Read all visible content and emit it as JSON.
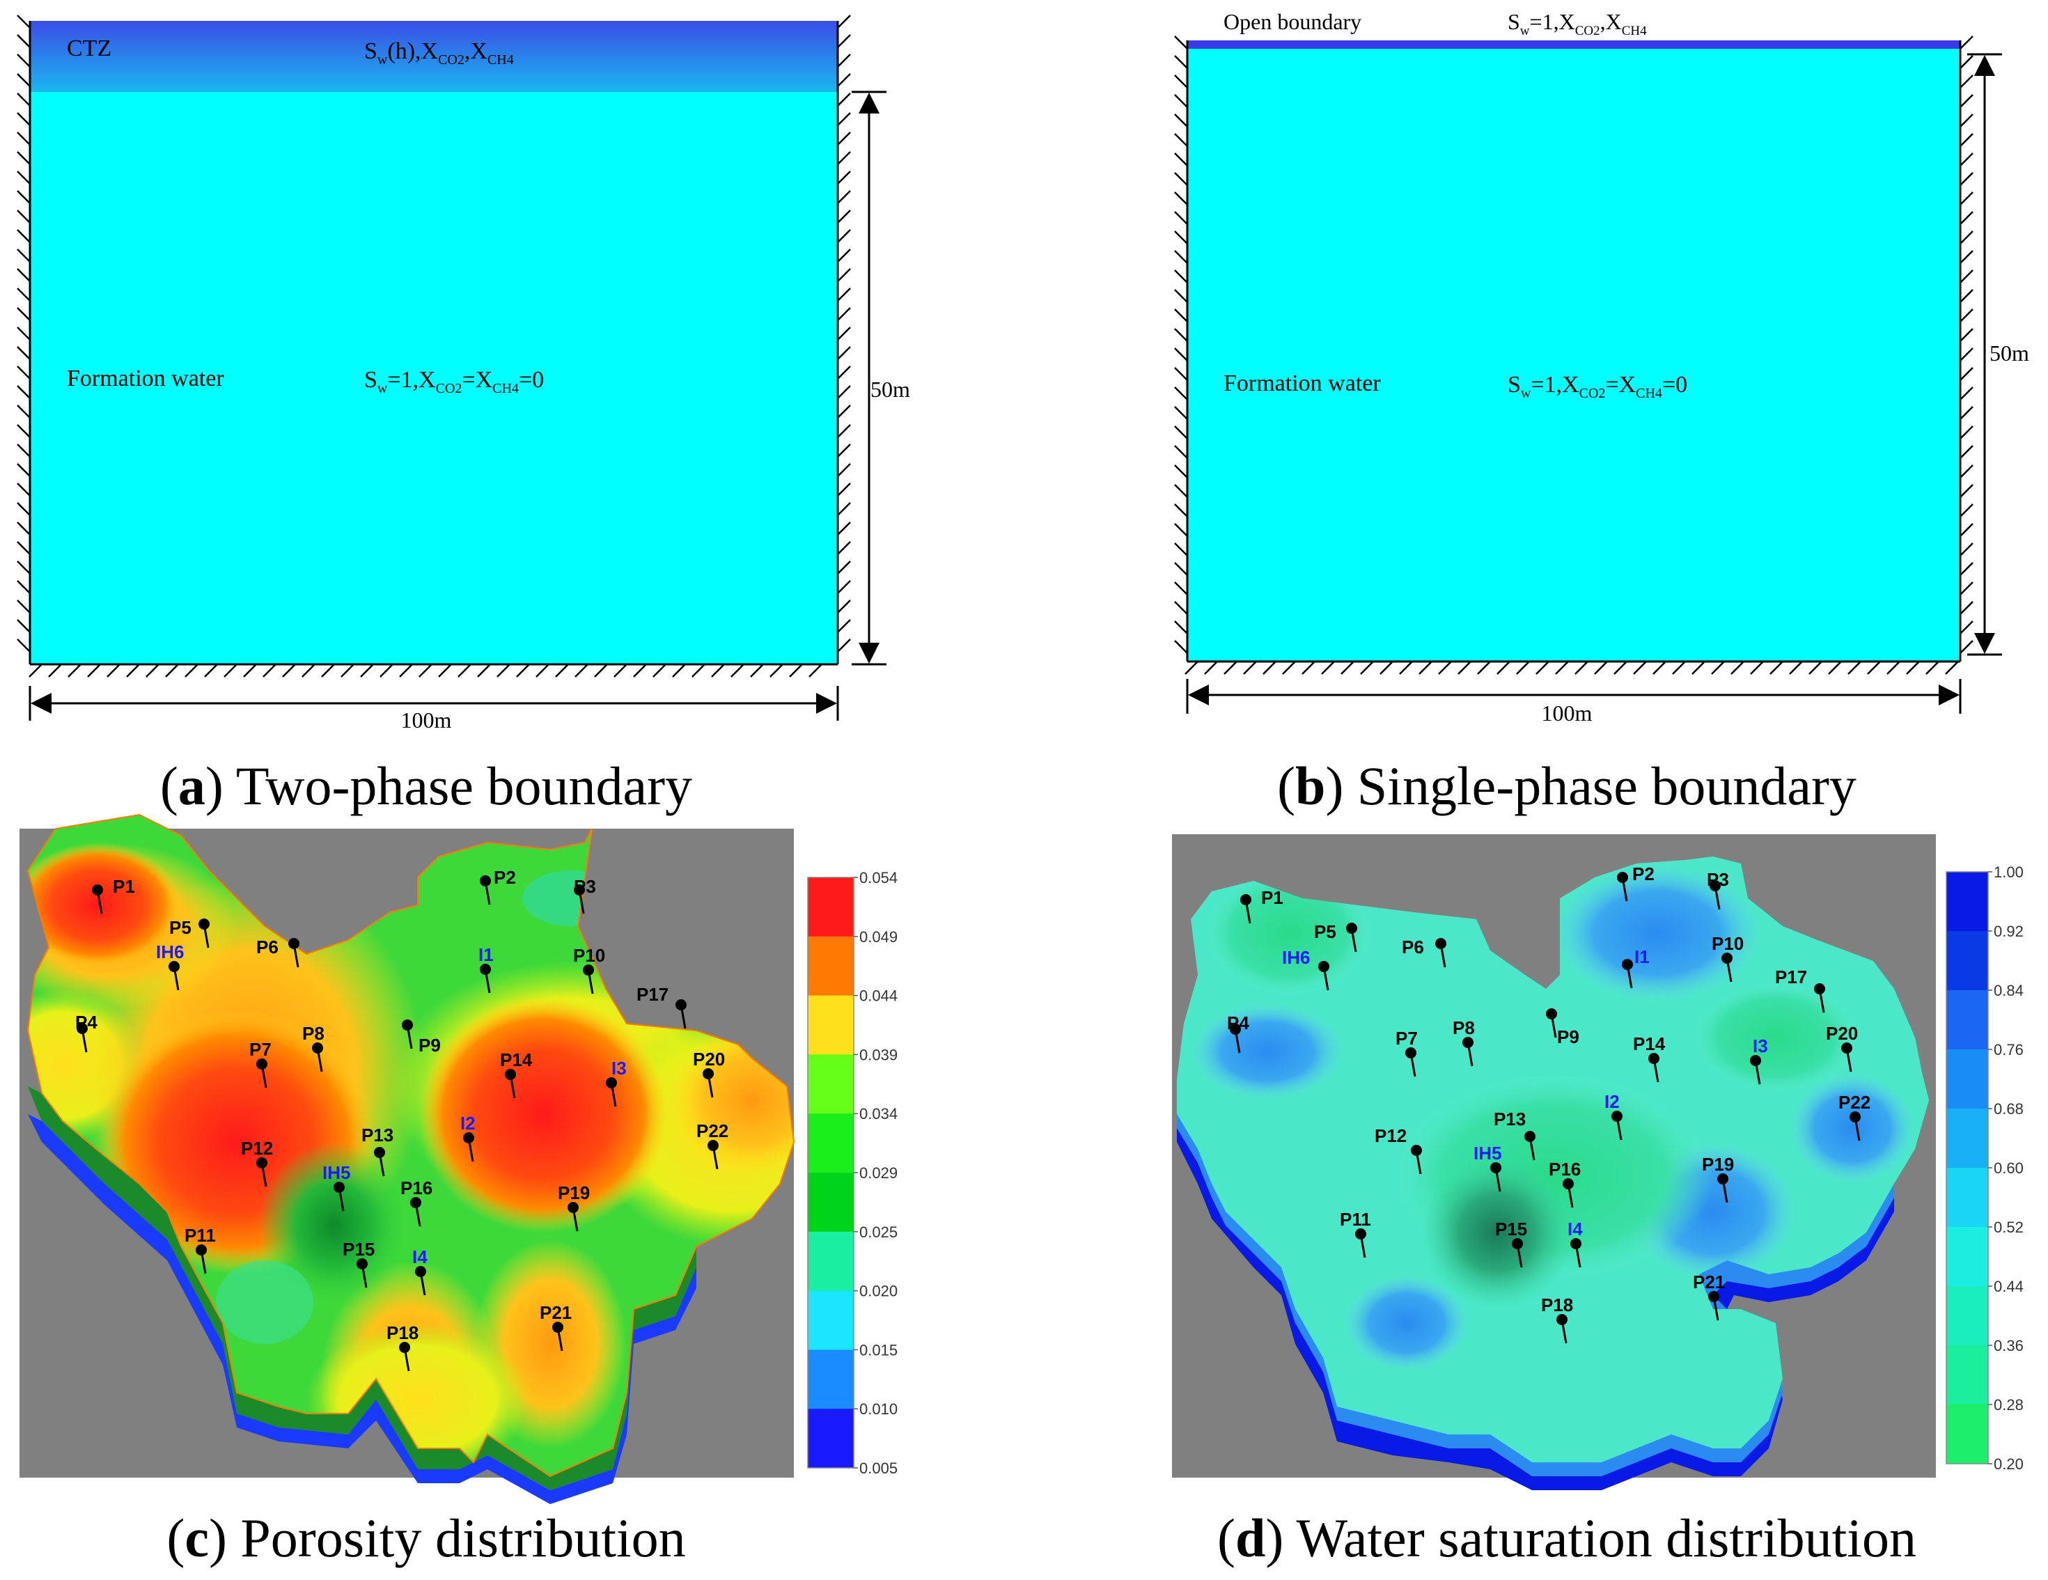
{
  "panel_a": {
    "top_label": "CTZ",
    "top_condition": {
      "base": "S",
      "sub1": "w",
      "mid": "(h),X",
      "sub2": "CO2",
      "mid2": ",X",
      "sub3": "CH4"
    },
    "water_label": "Formation water",
    "water_condition": {
      "base": "S",
      "sub1": "w",
      "mid": "=1,X",
      "sub2": "CO2",
      "mid2": "=X",
      "sub3": "CH4",
      "tail": "=0"
    },
    "height_label": "50m",
    "width_label": "100m",
    "caption_letter": "a",
    "caption_text": " Two-phase boundary",
    "colors": {
      "top_band": "#3a4ee6",
      "fill": "#00ffff"
    }
  },
  "panel_b": {
    "top_label": "Open boundary",
    "top_condition": {
      "base": "S",
      "sub1": "w",
      "mid": "=1,X",
      "sub2": "CO2",
      "mid2": ",X",
      "sub3": "CH4"
    },
    "water_label": "Formation water",
    "water_condition": {
      "base": "S",
      "sub1": "w",
      "mid": "=1,X",
      "sub2": "CO2",
      "mid2": "=X",
      "sub3": "CH4",
      "tail": "=0"
    },
    "height_label": "50m",
    "width_label": "100m",
    "caption_letter": "b",
    "caption_text": " Single-phase boundary",
    "colors": {
      "top_band": "#3a3ae8",
      "fill": "#00ffff"
    }
  },
  "panel_c": {
    "caption_letter": "c",
    "caption_text": " Porosity distribution",
    "colorbar_ticks": [
      "0.054",
      "0.049",
      "0.044",
      "0.039",
      "0.034",
      "0.029",
      "0.025",
      "0.020",
      "0.015",
      "0.010",
      "0.005"
    ],
    "colorbar_colors": [
      "#ff1a1a",
      "#ff7a00",
      "#ffe01a",
      "#66ff1a",
      "#1aee1a",
      "#00d41a",
      "#1aeea0",
      "#1ae6ff",
      "#1a8cff",
      "#1a1aff"
    ],
    "wells": [
      "P1",
      "P2",
      "P3",
      "P4",
      "P5",
      "IH6",
      "P6",
      "I1",
      "P10",
      "P17",
      "P7",
      "P8",
      "P9",
      "P14",
      "I3",
      "P20",
      "P12",
      "P13",
      "I2",
      "P22",
      "IH5",
      "P16",
      "P19",
      "P11",
      "P15",
      "I4",
      "P21",
      "P18"
    ],
    "injectors": [
      "IH6",
      "I1",
      "I3",
      "I2",
      "IH5",
      "I4"
    ]
  },
  "panel_d": {
    "caption_letter": "d",
    "caption_text": " Water saturation distribution",
    "colorbar_ticks": [
      "1.00",
      "0.92",
      "0.84",
      "0.76",
      "0.68",
      "0.60",
      "0.52",
      "0.44",
      "0.36",
      "0.28",
      "0.20"
    ],
    "colorbar_colors": [
      "#0a1ae6",
      "#0a3ae6",
      "#1a66f0",
      "#1a8cf5",
      "#1ab0f5",
      "#1ad4f5",
      "#1aeee0",
      "#1aeebf",
      "#1aee9a",
      "#1aee6a"
    ],
    "wells": [
      "P1",
      "P2",
      "P3",
      "P5",
      "IH6",
      "P6",
      "I1",
      "P10",
      "P17",
      "P4",
      "P7",
      "P8",
      "P9",
      "P14",
      "I3",
      "P20",
      "P22",
      "P12",
      "P13",
      "I2",
      "IH5",
      "P16",
      "P19",
      "P11",
      "P15",
      "I4",
      "P21",
      "P18"
    ],
    "injectors": [
      "IH6",
      "I1",
      "I3",
      "I2",
      "IH5",
      "I4"
    ]
  }
}
